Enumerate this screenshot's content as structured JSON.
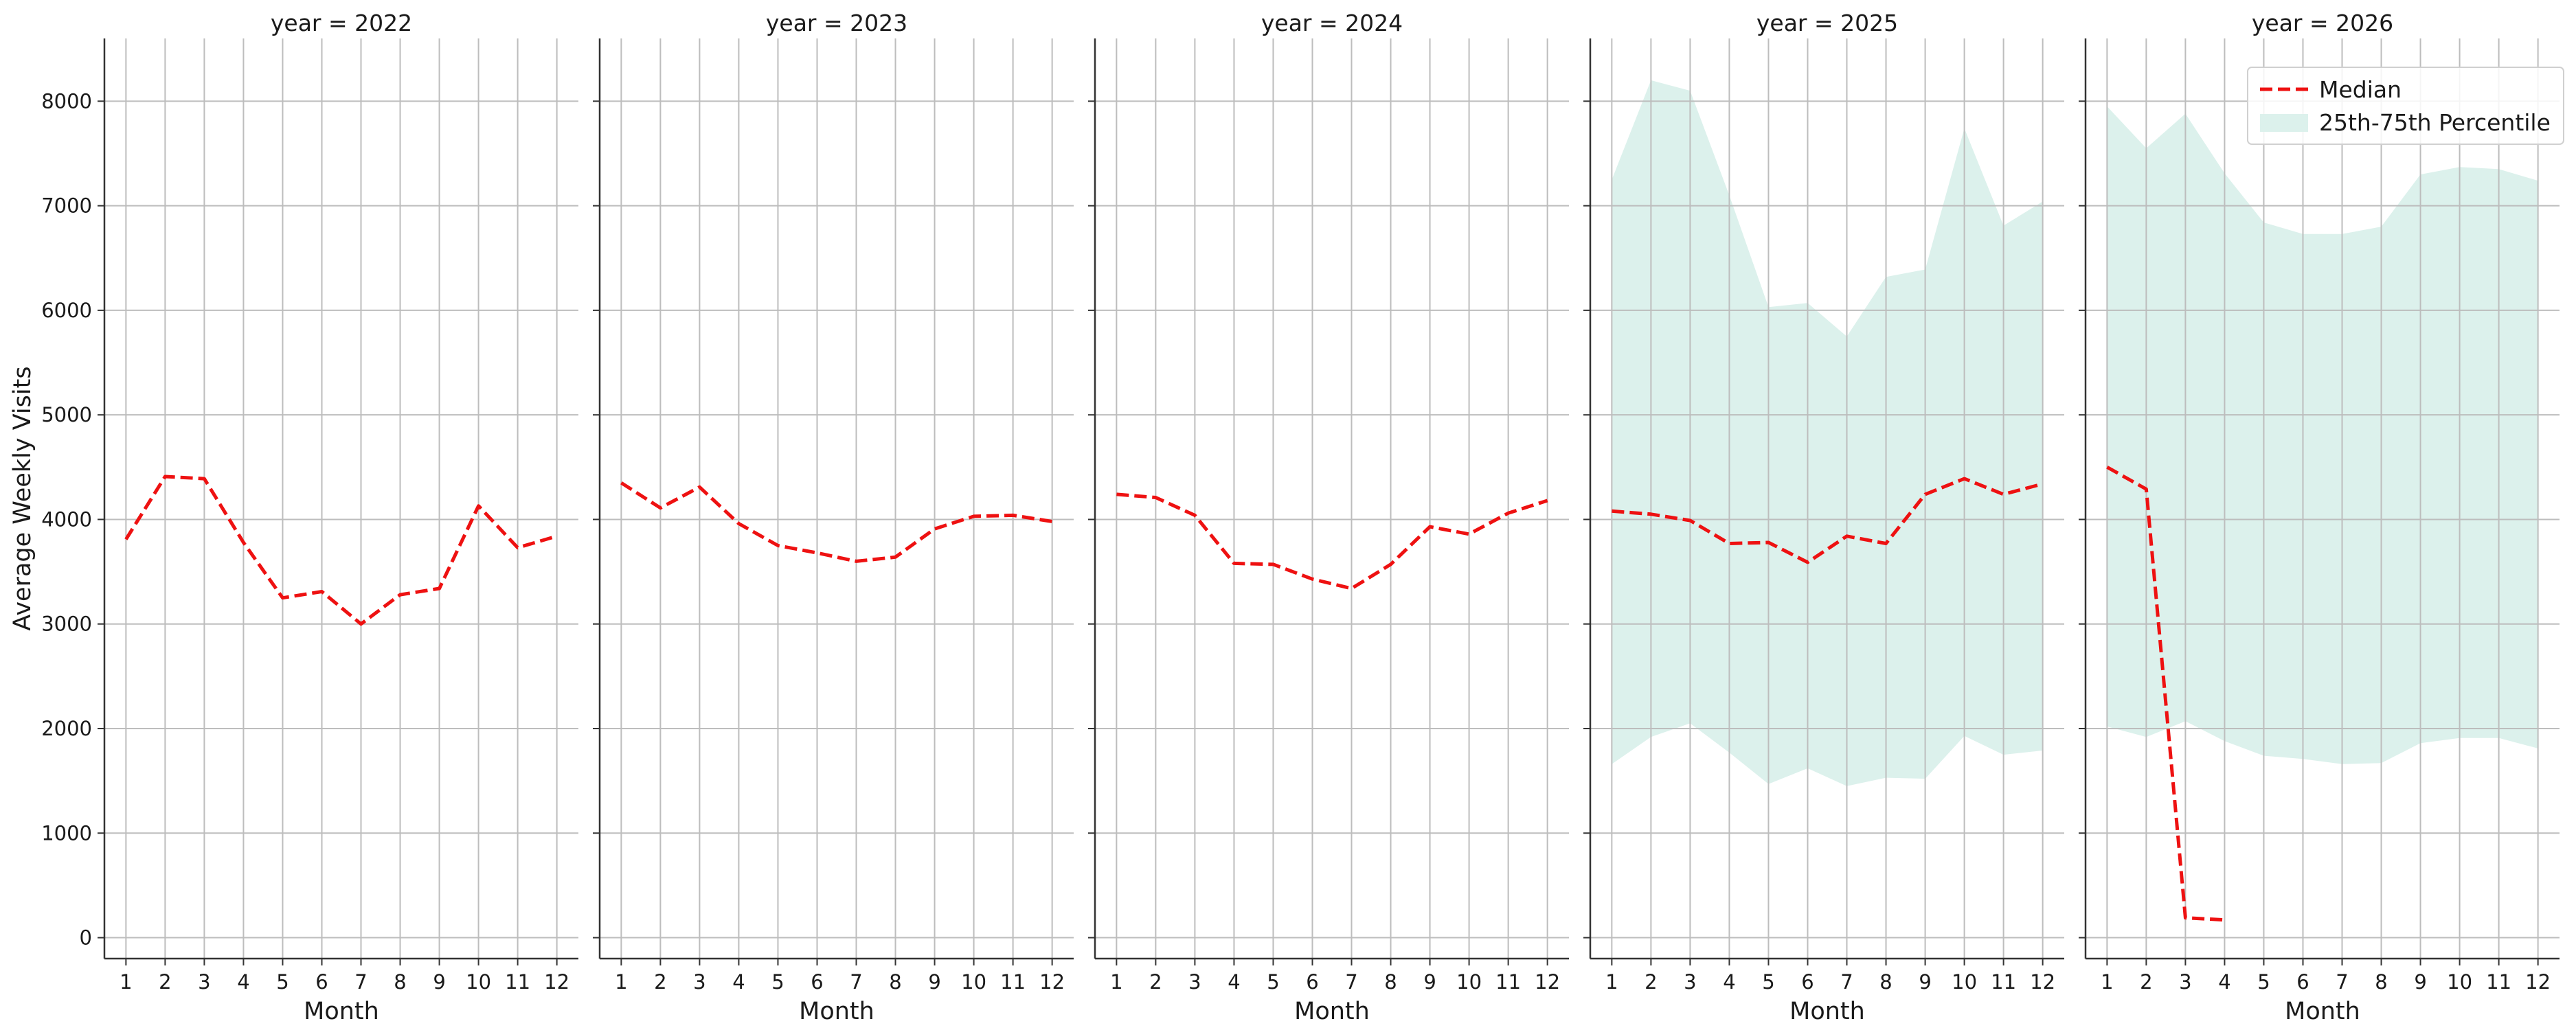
{
  "chart_data": {
    "type": "line",
    "ylabel": "Average Weekly Visits",
    "xlabel": "Month",
    "ylim": [
      -200,
      8600
    ],
    "yticks": [
      0,
      1000,
      2000,
      3000,
      4000,
      5000,
      6000,
      7000,
      8000
    ],
    "xticks": [
      1,
      2,
      3,
      4,
      5,
      6,
      7,
      8,
      9,
      10,
      11,
      12
    ],
    "xlim": [
      0.45,
      12.55
    ],
    "grid": true,
    "legend": {
      "placement": "top-right",
      "median_label": "Median",
      "band_label": "25th-75th Percentile"
    },
    "colors": {
      "median": "#ee1111",
      "band": "#dcf1ec",
      "grid": "#bdbdbd",
      "axis": "#333333"
    },
    "panels": [
      {
        "title": "year = 2022",
        "median": {
          "x": [
            1,
            2,
            3,
            4,
            5,
            6,
            7,
            8,
            9,
            10,
            11,
            12
          ],
          "y": [
            3810,
            4410,
            4390,
            3780,
            3250,
            3310,
            3000,
            3280,
            3340,
            4130,
            3730,
            3840
          ]
        }
      },
      {
        "title": "year = 2023",
        "median": {
          "x": [
            1,
            2,
            3,
            4,
            5,
            6,
            7,
            8,
            9,
            10,
            11,
            12
          ],
          "y": [
            4350,
            4110,
            4310,
            3960,
            3750,
            3680,
            3600,
            3640,
            3910,
            4030,
            4040,
            3980
          ]
        }
      },
      {
        "title": "year = 2024",
        "median": {
          "x": [
            1,
            2,
            3,
            4,
            5,
            6,
            7,
            8,
            9,
            10,
            11,
            12
          ],
          "y": [
            4240,
            4210,
            4040,
            3580,
            3570,
            3430,
            3340,
            3570,
            3930,
            3860,
            4060,
            4180
          ]
        }
      },
      {
        "title": "year = 2025",
        "median": {
          "x": [
            1,
            2,
            3,
            4,
            5,
            6,
            7,
            8,
            9,
            10,
            11,
            12
          ],
          "y": [
            4080,
            4050,
            3990,
            3770,
            3780,
            3590,
            3840,
            3770,
            4240,
            4390,
            4240,
            4340
          ]
        },
        "band": {
          "x": [
            1,
            2,
            3,
            4,
            5,
            6,
            7,
            8,
            9,
            10,
            11,
            12
          ],
          "q25": [
            1660,
            1920,
            2050,
            1770,
            1470,
            1620,
            1450,
            1530,
            1520,
            1930,
            1750,
            1790
          ],
          "q75": [
            7250,
            8200,
            8100,
            7100,
            6030,
            6070,
            5750,
            6320,
            6390,
            7740,
            6810,
            7040
          ]
        }
      },
      {
        "title": "year = 2026",
        "median": {
          "x": [
            1,
            2,
            3,
            4
          ],
          "y": [
            4500,
            4290,
            190,
            170
          ]
        },
        "band": {
          "x": [
            1,
            2,
            3,
            4,
            5,
            6,
            7,
            8,
            9,
            10,
            11,
            12
          ],
          "q25": [
            2020,
            1920,
            2070,
            1880,
            1740,
            1710,
            1660,
            1670,
            1860,
            1910,
            1910,
            1810
          ],
          "q75": [
            7950,
            7550,
            7880,
            7310,
            6840,
            6730,
            6730,
            6800,
            7300,
            7370,
            7350,
            7240
          ]
        }
      }
    ]
  }
}
